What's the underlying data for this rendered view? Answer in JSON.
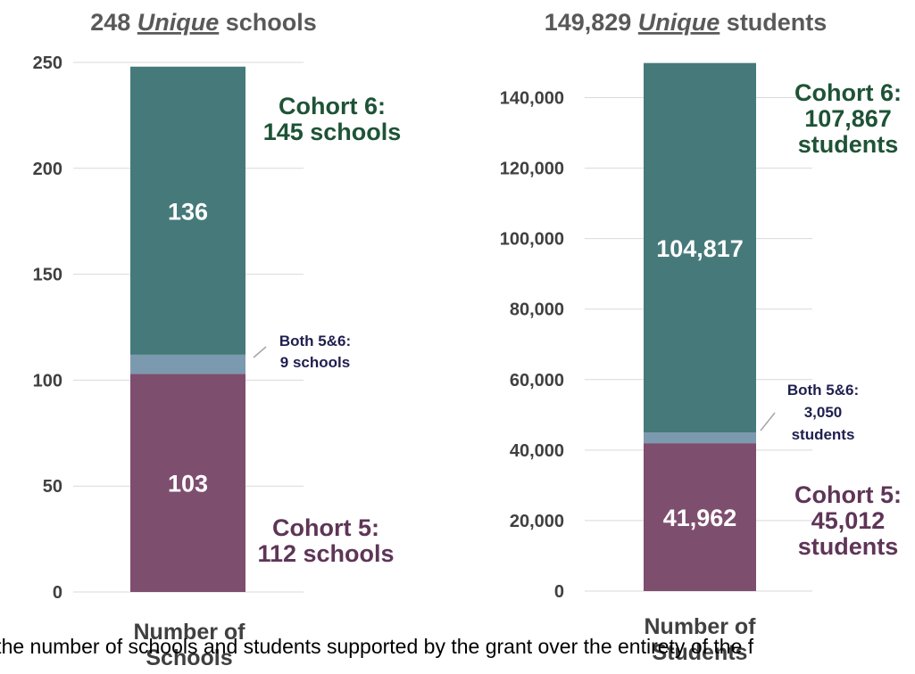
{
  "colors": {
    "cohort6": "#46797A",
    "both": "#7B9AAF",
    "cohort5": "#7E4E6F",
    "cohort6_label": "#1E5336",
    "cohort5_label": "#5E3557",
    "both_label": "#1F1F4F",
    "gridline": "#D9D9D9"
  },
  "chart_data": [
    {
      "type": "bar",
      "stacked": true,
      "title_parts": [
        "248 ",
        "Unique",
        " schools"
      ],
      "categories": [
        "Number of Schools"
      ],
      "category_lines": [
        "Number of",
        "Schools"
      ],
      "series": [
        {
          "name": "Cohort 5",
          "values": [
            103
          ],
          "data_label": "103"
        },
        {
          "name": "Both 5&6",
          "values": [
            9
          ]
        },
        {
          "name": "Cohort 6",
          "values": [
            136
          ],
          "data_label": "136"
        }
      ],
      "ylim": [
        0,
        250
      ],
      "yticks": [
        0,
        50,
        100,
        150,
        200,
        250
      ],
      "ytick_labels": [
        "0",
        "50",
        "100",
        "150",
        "200",
        "250"
      ],
      "grid": true,
      "annotations": {
        "cohort6": [
          "Cohort 6:",
          "145 schools"
        ],
        "both": [
          "Both 5&6:",
          "9 schools"
        ],
        "cohort5": [
          "Cohort 5:",
          "112 schools"
        ]
      }
    },
    {
      "type": "bar",
      "stacked": true,
      "title_parts": [
        "149,829 ",
        "Unique",
        " students"
      ],
      "categories": [
        "Number of Students"
      ],
      "category_lines": [
        "Number of",
        "Students"
      ],
      "series": [
        {
          "name": "Cohort 5",
          "values": [
            41962
          ],
          "data_label": "41,962"
        },
        {
          "name": "Both 5&6",
          "values": [
            3050
          ]
        },
        {
          "name": "Cohort 6",
          "values": [
            104817
          ],
          "data_label": "104,817"
        }
      ],
      "ylim": [
        0,
        150000
      ],
      "yticks": [
        0,
        20000,
        40000,
        60000,
        80000,
        100000,
        120000,
        140000
      ],
      "ytick_labels": [
        "0",
        "20,000",
        "40,000",
        "60,000",
        "80,000",
        "100,000",
        "120,000",
        "140,000"
      ],
      "grid": true,
      "annotations": {
        "cohort6": [
          "Cohort 6:",
          "107,867",
          "students"
        ],
        "both": [
          "Both 5&6:",
          "3,050",
          "students"
        ],
        "cohort5": [
          "Cohort 5:",
          "45,012",
          "students"
        ]
      }
    }
  ],
  "caption": "n the number of schools and students supported by the grant over the entirety of the f"
}
